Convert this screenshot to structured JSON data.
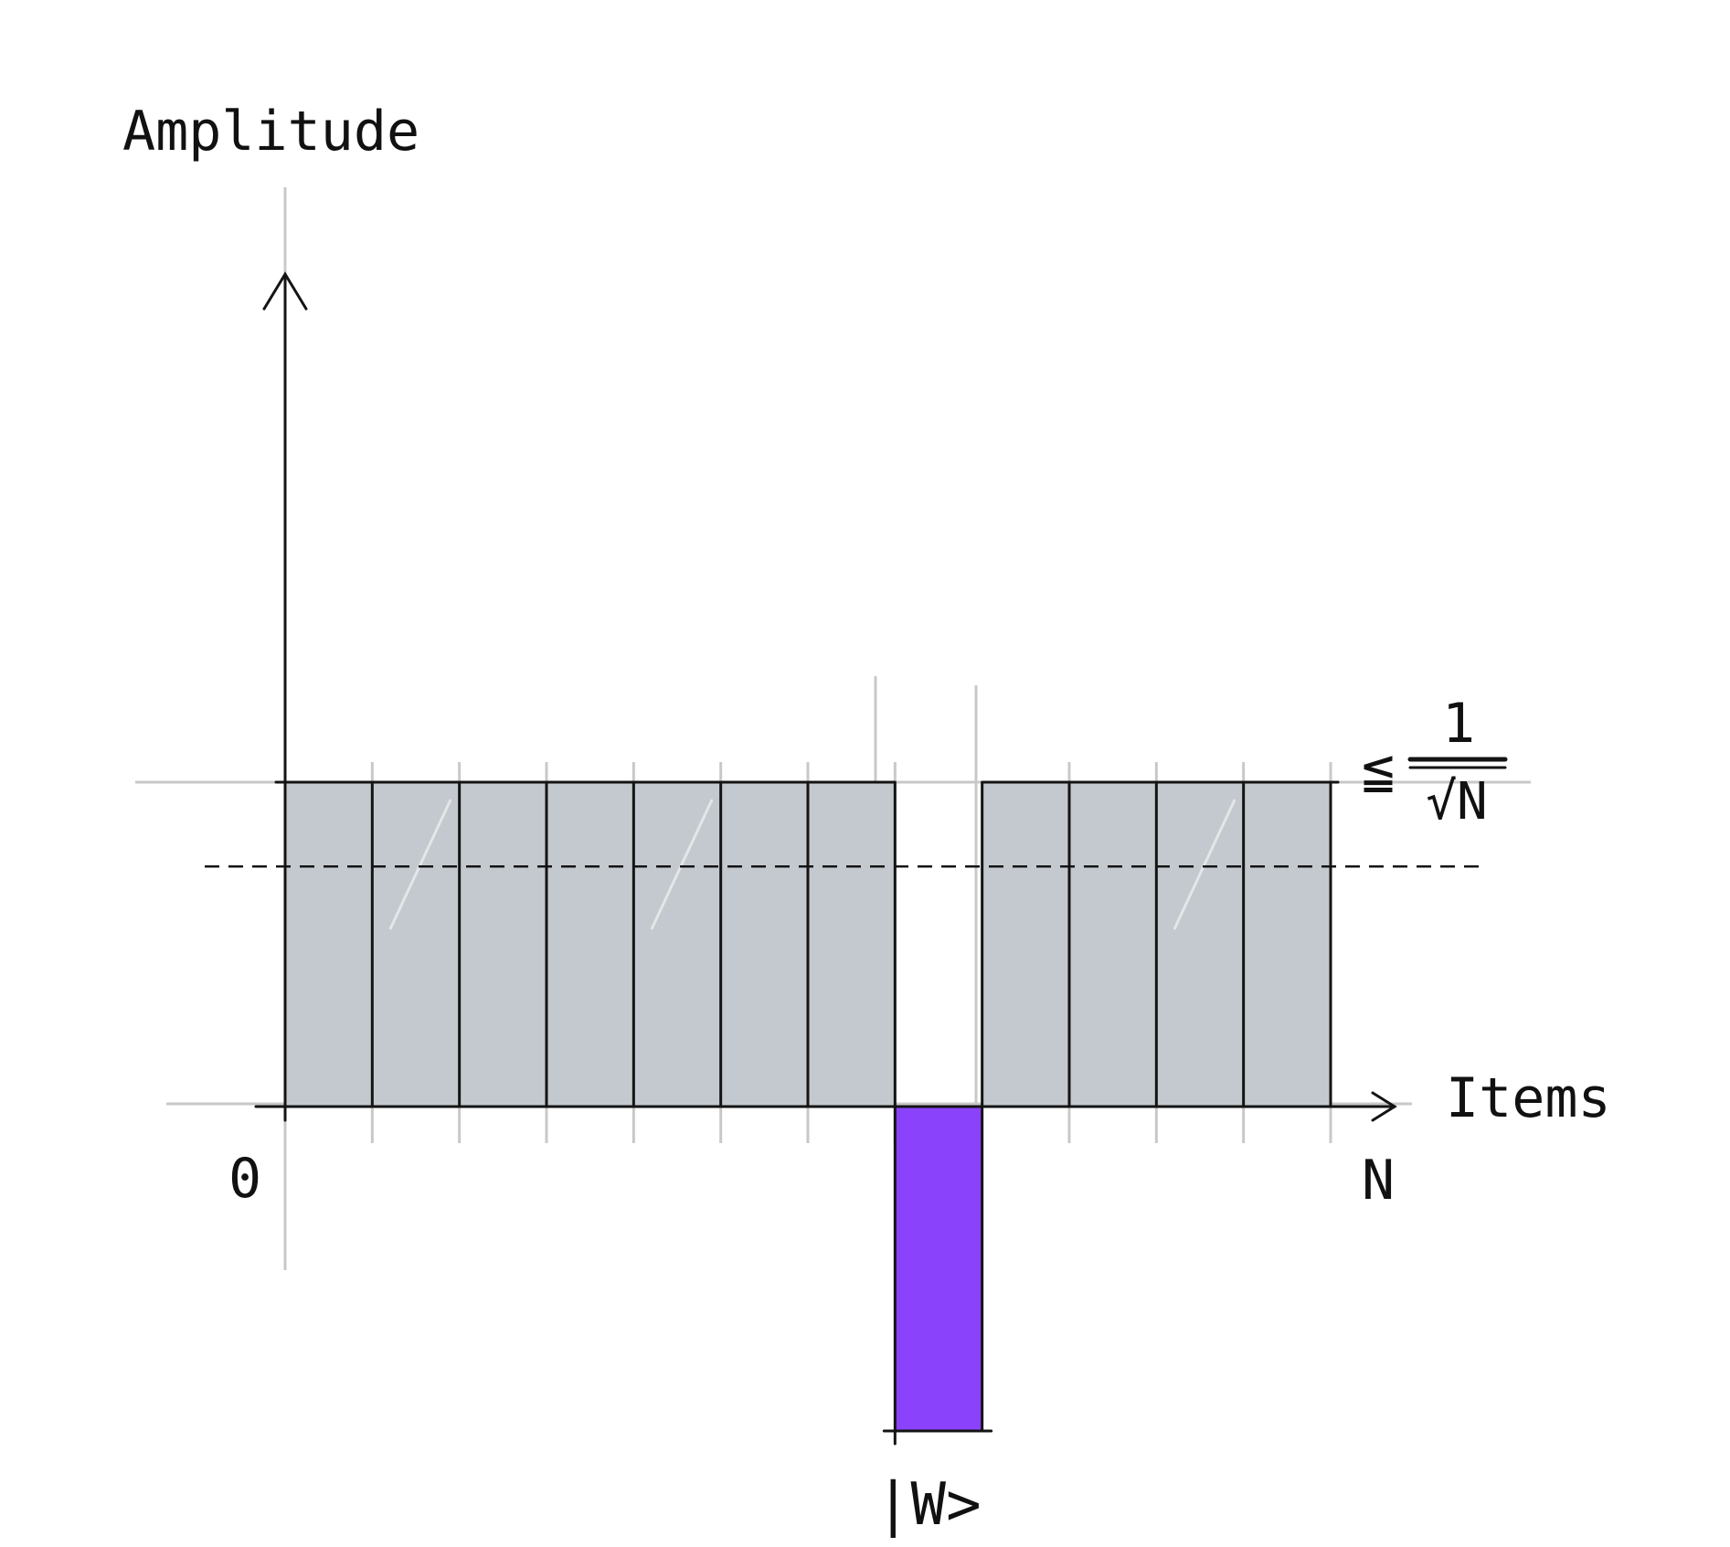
{
  "labels": {
    "y_axis": "Amplitude",
    "x_axis": "Items",
    "origin": "0",
    "x_end": "N",
    "marked_item": "|W>",
    "threshold_symbol": "≦",
    "threshold_numerator": "1",
    "threshold_denominator": "√N"
  },
  "chart_data": {
    "type": "bar",
    "item_count": 12,
    "marked_index": 7,
    "uniform_amplitude": 1,
    "marked_amplitude": -1,
    "mean_line": 0.74,
    "xlabel": "Items",
    "ylabel": "Amplitude"
  },
  "colors": {
    "bar_fill": "#c3c9ce",
    "marked_fill": "#8b42fb",
    "ink": "#141414",
    "guide": "#c8c8c8"
  }
}
